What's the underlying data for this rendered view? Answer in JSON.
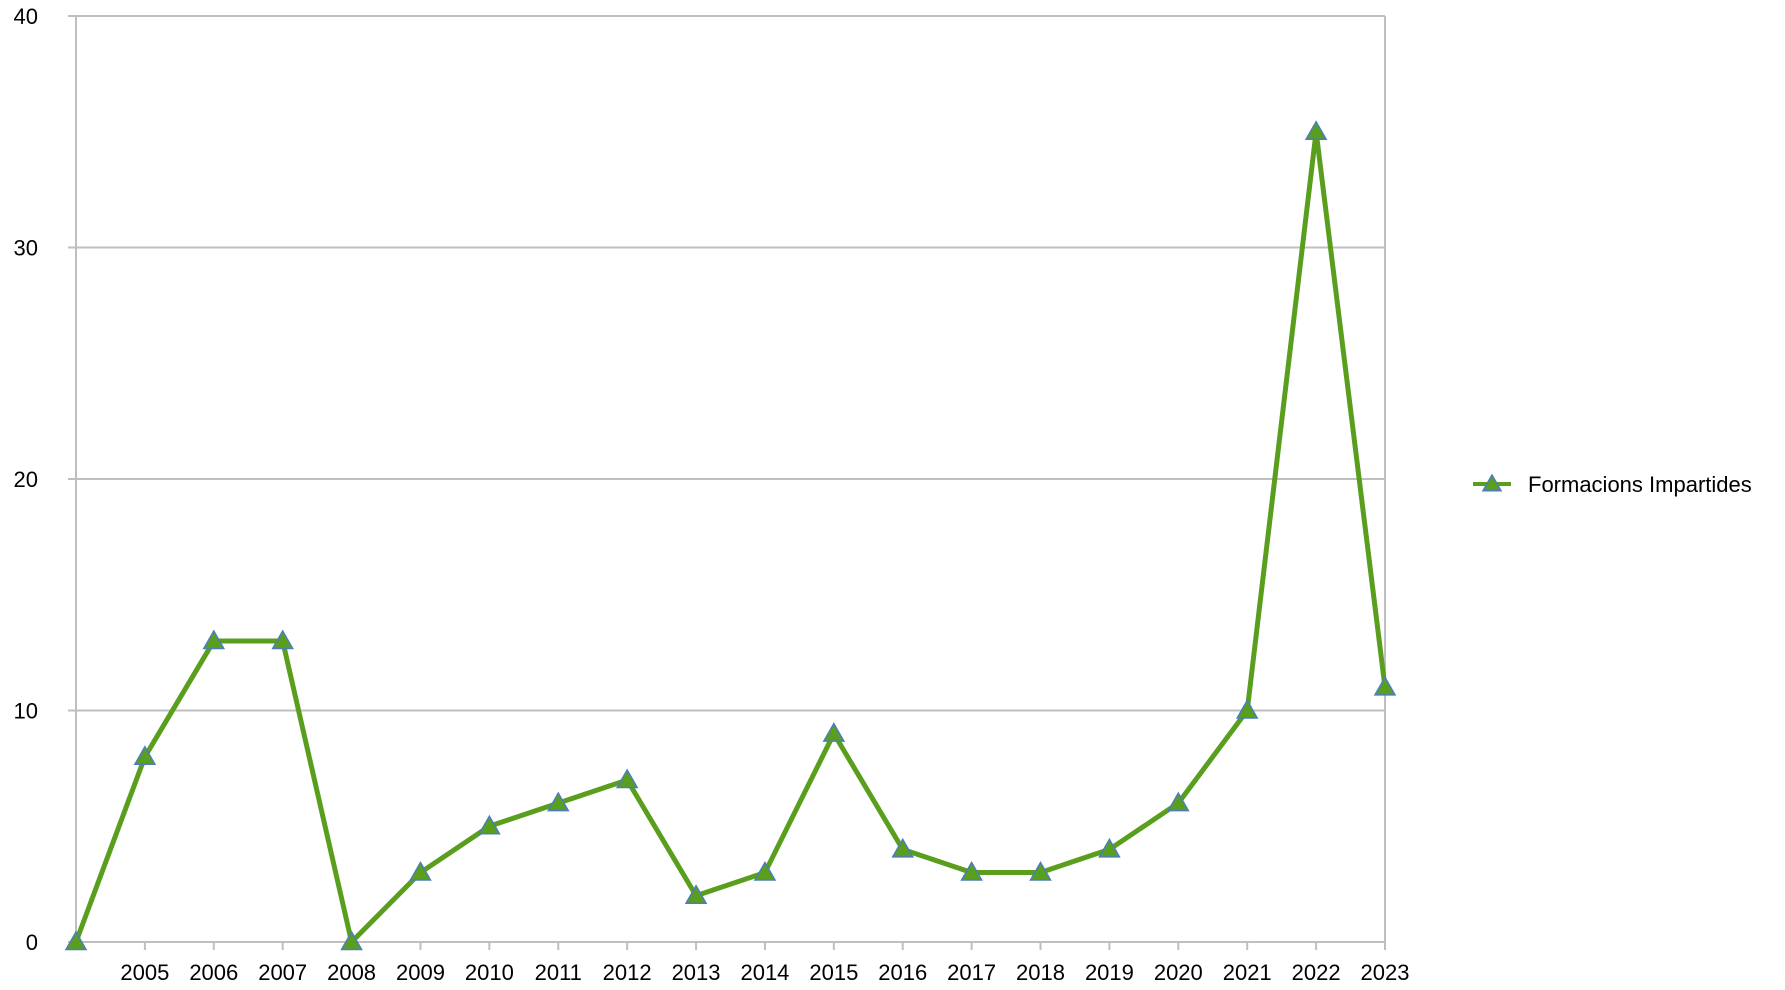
{
  "chart_data": {
    "type": "line",
    "title": "",
    "xlabel": "",
    "ylabel": "",
    "categories": [
      "",
      "2005",
      "2006",
      "2007",
      "2008",
      "2009",
      "2010",
      "2011",
      "2012",
      "2013",
      "2014",
      "2015",
      "2016",
      "2017",
      "2018",
      "2019",
      "2020",
      "2021",
      "2022",
      "2023"
    ],
    "series": [
      {
        "name": "Formacions Impartides",
        "values": [
          0,
          8,
          13,
          13,
          0,
          3,
          5,
          6,
          7,
          2,
          3,
          9,
          4,
          3,
          3,
          4,
          6,
          10,
          35,
          11
        ],
        "color": "#5a9e1e",
        "marker": "triangle",
        "marker_color": "#5a9e1e",
        "marker_edge_color": "#4a7ebb"
      }
    ],
    "ylim": [
      0,
      40
    ],
    "y_ticks": [
      "0",
      "10",
      "20",
      "30",
      "40"
    ],
    "grid": true,
    "grid_color": "#bfbfbf",
    "legend_position": "right"
  }
}
